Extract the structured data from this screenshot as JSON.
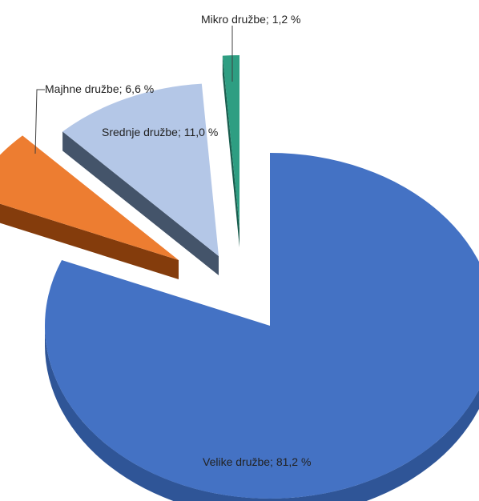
{
  "chart_data": {
    "type": "pie",
    "style": "3d-exploded",
    "slices": [
      {
        "name": "Velike družbe",
        "value": 81.2,
        "label": "Velike družbe; 81,2 %",
        "color": "#4472C4",
        "side": "#2F5597"
      },
      {
        "name": "Majhne družbe",
        "value": 6.6,
        "label": "Majhne družbe; 6,6 %",
        "color": "#ED7D31",
        "side": "#843C0C"
      },
      {
        "name": "Srednje družbe",
        "value": 11.0,
        "label": "Srednje družbe; 11,0 %",
        "color": "#B4C7E7",
        "side": "#44546A"
      },
      {
        "name": "Mikro družbe",
        "value": 1.2,
        "label": "Mikro družbe; 1,2 %",
        "color": "#2E9E82",
        "side": "#1B5E4F"
      }
    ],
    "title": "",
    "legend": "none"
  }
}
